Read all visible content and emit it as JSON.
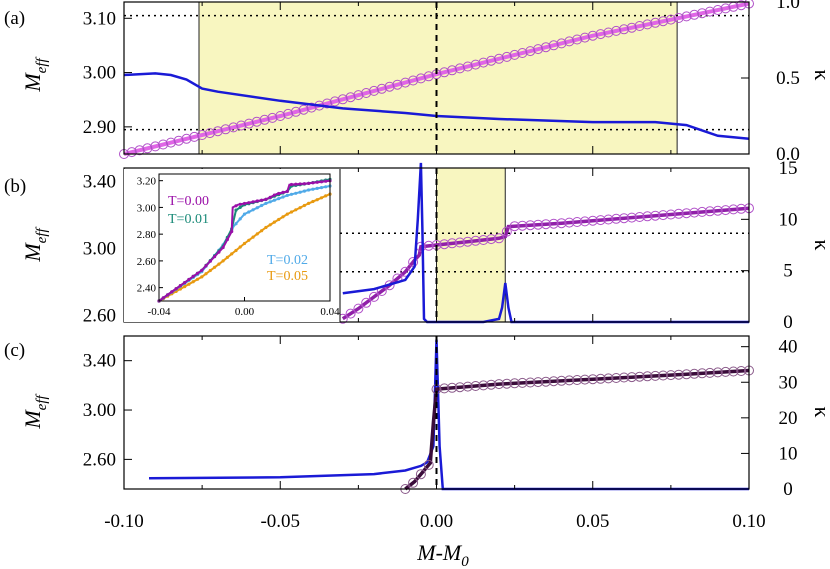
{
  "colors": {
    "shade": "#f8f6c0",
    "kappa": "#1a1ad6",
    "line_a": "#e066e6",
    "marker_a": "#b050c8",
    "line_b": "#9020a8",
    "line_c": "#3a0c3a",
    "marker_c": "#8a5a8a",
    "inset_t000": "#9a10a8",
    "inset_t001": "#1a8a78",
    "inset_t002": "#50aae8",
    "inset_t005": "#e89a10"
  },
  "labels": {
    "panel_a": "(a)",
    "panel_b": "(b)",
    "panel_c": "(c)",
    "ylabel_base": "M",
    "ylabel_sub": "eff",
    "y2label": "κ",
    "xlabel_base": "M-M",
    "xlabel_sub": "0"
  },
  "ticks": {
    "x": [
      "-0.10",
      "-0.05",
      "0.00",
      "0.05",
      "0.10"
    ],
    "a_left": [
      "2.90",
      "3.00",
      "3.10"
    ],
    "a_right": [
      "0.0",
      "0.5",
      "1.0"
    ],
    "b_left": [
      "2.60",
      "3.00",
      "3.40"
    ],
    "b_right": [
      "0",
      "5",
      "10",
      "15"
    ],
    "c_left": [
      "2.60",
      "3.00",
      "3.40"
    ],
    "c_right": [
      "0",
      "10",
      "20",
      "30",
      "40"
    ],
    "inset_x": [
      "-0.04",
      "0.00",
      "0.04"
    ],
    "inset_y": [
      "2.40",
      "2.60",
      "2.80",
      "3.00",
      "3.20"
    ]
  },
  "inset_legend": [
    "T=0.00",
    "T=0.01",
    "T=0.02",
    "T=0.05"
  ],
  "chart_data": [
    {
      "panel": "(a)",
      "type": "line",
      "xlabel": "M-M0",
      "ylabel": "Meff",
      "y2label": "κ",
      "xlim": [
        -0.1,
        0.1
      ],
      "ylim": [
        2.85,
        3.13
      ],
      "y2lim": [
        0.0,
        1.0
      ],
      "shaded_x": [
        -0.076,
        0.077
      ],
      "hlines": [
        2.895,
        3.105
      ],
      "vline": 0.0,
      "series": [
        {
          "axis": "left",
          "x": [
            -0.1,
            -0.05,
            0.0,
            0.05,
            0.1
          ],
          "values": [
            2.85,
            2.92,
            2.997,
            3.068,
            3.127
          ]
        },
        {
          "axis": "right",
          "x": [
            -0.1,
            -0.09,
            -0.085,
            -0.08,
            -0.075,
            -0.07,
            -0.05,
            -0.03,
            -0.01,
            0.0,
            0.02,
            0.05,
            0.07,
            0.08,
            0.09,
            0.095,
            0.1
          ],
          "values": [
            0.52,
            0.53,
            0.52,
            0.49,
            0.43,
            0.41,
            0.35,
            0.3,
            0.27,
            0.25,
            0.23,
            0.21,
            0.21,
            0.19,
            0.12,
            0.11,
            0.1
          ]
        }
      ]
    },
    {
      "panel": "(b)",
      "type": "line",
      "xlabel": "M-M0",
      "ylabel": "Meff",
      "y2label": "κ",
      "xlim": [
        -0.1,
        0.1
      ],
      "ylim": [
        2.56,
        3.48
      ],
      "y2lim": [
        0,
        15
      ],
      "shaded_x": [
        0.0,
        0.022
      ],
      "hlines": [
        3.09,
        2.86
      ],
      "vline": 0.0,
      "series": [
        {
          "axis": "left",
          "x": [
            -0.03,
            -0.025,
            -0.02,
            -0.015,
            -0.01,
            -0.007,
            -0.0055,
            -0.005,
            0.0,
            0.01,
            0.02,
            0.022,
            0.023,
            0.04,
            0.06,
            0.08,
            0.1
          ],
          "values": [
            2.58,
            2.64,
            2.71,
            2.78,
            2.86,
            2.93,
            2.96,
            3.01,
            3.02,
            3.04,
            3.06,
            3.07,
            3.13,
            3.15,
            3.18,
            3.21,
            3.24
          ]
        },
        {
          "axis": "right",
          "x": [
            -0.03,
            -0.02,
            -0.01,
            -0.007,
            -0.006,
            -0.005,
            -0.0045,
            -0.004,
            -0.003,
            0.0,
            0.01,
            0.015,
            0.02,
            0.021,
            0.022,
            0.023,
            0.024,
            0.03,
            0.1
          ],
          "values": [
            2.8,
            3.2,
            4.1,
            5.4,
            10.0,
            15.5,
            9.0,
            0.3,
            0.0,
            0.0,
            0.0,
            0.0,
            0.3,
            1.4,
            3.8,
            1.4,
            0.0,
            0.0,
            0.0
          ]
        }
      ]
    },
    {
      "panel": "(b) inset",
      "type": "line",
      "xlim": [
        -0.04,
        0.04
      ],
      "ylim": [
        2.3,
        3.25
      ],
      "series": [
        {
          "name": "T=0.00",
          "x": [
            -0.04,
            -0.02,
            -0.01,
            -0.006,
            -0.0055,
            -0.003,
            0.01,
            0.015,
            0.02,
            0.021,
            0.03,
            0.04
          ],
          "values": [
            2.3,
            2.53,
            2.7,
            2.82,
            3.0,
            3.02,
            3.06,
            3.1,
            3.12,
            3.17,
            3.18,
            3.2
          ]
        },
        {
          "name": "T=0.01",
          "x": [
            -0.04,
            -0.02,
            -0.01,
            -0.006,
            -0.004,
            0.0,
            0.01,
            0.02,
            0.022,
            0.03,
            0.04
          ],
          "values": [
            2.3,
            2.53,
            2.71,
            2.84,
            2.98,
            3.02,
            3.06,
            3.12,
            3.16,
            3.18,
            3.21
          ]
        },
        {
          "name": "T=0.02",
          "x": [
            -0.04,
            -0.02,
            -0.01,
            -0.005,
            0.0,
            0.01,
            0.02,
            0.03,
            0.04
          ],
          "values": [
            2.3,
            2.52,
            2.72,
            2.86,
            2.95,
            3.03,
            3.09,
            3.13,
            3.16
          ]
        },
        {
          "name": "T=0.05",
          "x": [
            -0.04,
            -0.02,
            -0.01,
            0.0,
            0.01,
            0.02,
            0.03,
            0.04
          ],
          "values": [
            2.3,
            2.48,
            2.6,
            2.73,
            2.85,
            2.95,
            3.03,
            3.1
          ]
        }
      ]
    },
    {
      "panel": "(c)",
      "type": "line",
      "xlabel": "M-M0",
      "ylabel": "Meff",
      "y2label": "κ",
      "xlim": [
        -0.1,
        0.1
      ],
      "ylim": [
        2.36,
        3.6
      ],
      "y2lim": [
        0,
        43
      ],
      "vline": 0.0,
      "series": [
        {
          "axis": "left",
          "x": [
            -0.01,
            -0.007,
            -0.005,
            -0.003,
            -0.002,
            -0.001,
            0.0,
            0.02,
            0.05,
            0.08,
            0.1
          ],
          "values": [
            2.36,
            2.42,
            2.48,
            2.54,
            2.57,
            2.9,
            3.17,
            3.21,
            3.25,
            3.29,
            3.32
          ]
        },
        {
          "axis": "right",
          "x": [
            -0.092,
            -0.05,
            -0.02,
            -0.01,
            -0.005,
            -0.003,
            -0.001,
            0.0,
            0.001,
            0.002,
            0.005,
            0.1
          ],
          "values": [
            3.0,
            3.3,
            4.2,
            5.2,
            6.5,
            7.5,
            12.0,
            42.0,
            12.0,
            0.0,
            0.0,
            0.0
          ]
        }
      ]
    }
  ]
}
